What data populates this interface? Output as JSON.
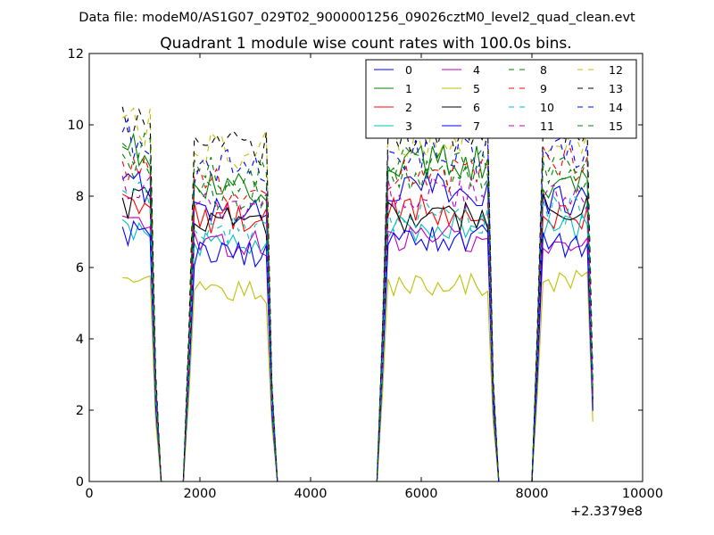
{
  "suptitle": "Data file: modeM0/AS1G07_029T02_9000001256_09026cztM0_level2_quad_clean.evt",
  "chart_data": {
    "type": "line",
    "title": "Quadrant 1 module wise count rates with 100.0s bins.",
    "xlabel": "",
    "ylabel": "",
    "x_offset_label": "+2.3379e8",
    "xlim": [
      0,
      10000
    ],
    "ylim": [
      0,
      12
    ],
    "x_ticks": [
      0,
      2000,
      4000,
      6000,
      8000,
      10000
    ],
    "y_ticks": [
      0,
      2,
      4,
      6,
      8,
      10,
      12
    ],
    "legend_location": "upper-right",
    "legend_columns": 4,
    "x": [
      600,
      700,
      800,
      900,
      1000,
      1100,
      1200,
      1300,
      1400,
      1500,
      1600,
      1700,
      1800,
      1900,
      2000,
      2100,
      2200,
      2300,
      2400,
      2500,
      2600,
      2700,
      2800,
      2900,
      3000,
      3100,
      3200,
      3300,
      3400,
      3500,
      3600,
      3700,
      3800,
      3900,
      4000,
      4100,
      4200,
      4300,
      4400,
      4500,
      4600,
      4700,
      4800,
      4900,
      5000,
      5100,
      5200,
      5300,
      5400,
      5500,
      5600,
      5700,
      5800,
      5900,
      6000,
      6100,
      6200,
      6300,
      6400,
      6500,
      6600,
      6700,
      6800,
      6900,
      7000,
      7100,
      7200,
      7300,
      7400,
      7500,
      7600,
      7700,
      7800,
      7900,
      8000,
      8100,
      8200,
      8300,
      8400,
      8500,
      8600,
      8700,
      8800,
      8900,
      9000,
      9100
    ],
    "active_segments": [
      [
        600,
        1200
      ],
      [
        1800,
        3300
      ],
      [
        5300,
        7300
      ],
      [
        8100,
        9100
      ]
    ],
    "series": [
      {
        "name": "0",
        "color": "#0000ff",
        "dash": "solid",
        "levels": [
          8.3,
          7.6,
          8.2,
          7.9
        ]
      },
      {
        "name": "1",
        "color": "#008000",
        "dash": "solid",
        "levels": [
          9.2,
          8.2,
          8.9,
          8.4
        ]
      },
      {
        "name": "2",
        "color": "#ff0000",
        "dash": "solid",
        "levels": [
          7.9,
          7.4,
          7.6,
          7.4
        ]
      },
      {
        "name": "3",
        "color": "#00bfbf",
        "dash": "solid",
        "levels": [
          7.2,
          6.7,
          7.1,
          7.1
        ]
      },
      {
        "name": "4",
        "color": "#bf00bf",
        "dash": "solid",
        "levels": [
          7.3,
          6.7,
          6.8,
          6.8
        ]
      },
      {
        "name": "5",
        "color": "#bfbf00",
        "dash": "solid",
        "levels": [
          5.6,
          5.3,
          5.5,
          5.6
        ]
      },
      {
        "name": "6",
        "color": "#000000",
        "dash": "solid",
        "levels": [
          7.8,
          7.3,
          7.4,
          7.7
        ]
      },
      {
        "name": "7",
        "color": "#0000ff",
        "dash": "solid",
        "levels": [
          7.0,
          6.4,
          6.8,
          6.6
        ]
      },
      {
        "name": "8",
        "color": "#008000",
        "dash": "dashed",
        "levels": [
          9.0,
          8.0,
          8.5,
          8.6
        ]
      },
      {
        "name": "9",
        "color": "#ff0000",
        "dash": "dashed",
        "levels": [
          8.8,
          8.3,
          8.6,
          8.9
        ]
      },
      {
        "name": "10",
        "color": "#00bfbf",
        "dash": "dashed",
        "levels": [
          8.0,
          7.1,
          7.4,
          7.6
        ]
      },
      {
        "name": "11",
        "color": "#bf00bf",
        "dash": "dashed",
        "levels": [
          8.4,
          7.7,
          8.1,
          8.0
        ]
      },
      {
        "name": "12",
        "color": "#bfbf00",
        "dash": "dashed",
        "levels": [
          10.0,
          9.3,
          9.6,
          9.6
        ]
      },
      {
        "name": "13",
        "color": "#000000",
        "dash": "dashed",
        "levels": [
          10.3,
          9.4,
          9.7,
          9.8
        ]
      },
      {
        "name": "14",
        "color": "#0000ff",
        "dash": "dashed",
        "levels": [
          9.6,
          8.8,
          9.2,
          9.3
        ]
      },
      {
        "name": "15",
        "color": "#008000",
        "dash": "dashed",
        "levels": [
          9.3,
          8.6,
          8.9,
          9.0
        ]
      }
    ]
  }
}
